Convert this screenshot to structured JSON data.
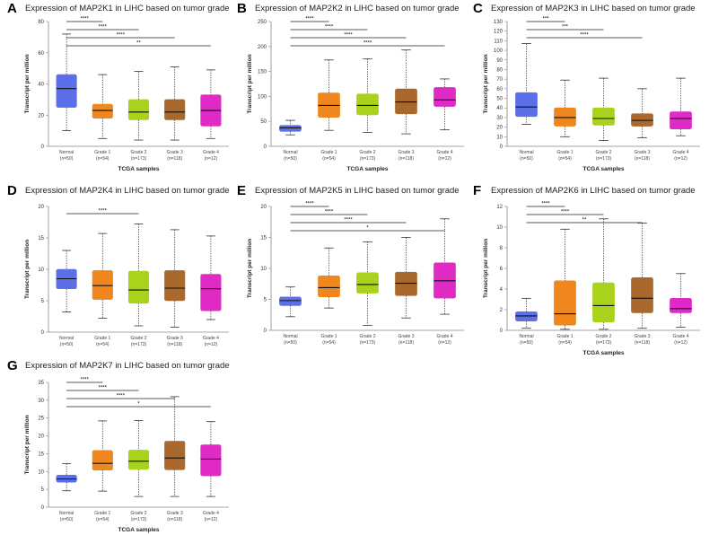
{
  "chart_data": [
    {
      "panel": "A",
      "type": "box",
      "title": "Expression of MAP2K1 in LIHC based on tumor grade",
      "xlabel": "TCGA samples",
      "ylabel": "Transcript per million",
      "ylim": [
        0,
        80
      ],
      "yticks": [
        0,
        20,
        40,
        60,
        80
      ],
      "categories": [
        {
          "name": "Normal",
          "n": "(n=50)"
        },
        {
          "name": "Grade 1",
          "n": "(n=54)"
        },
        {
          "name": "Grade 2",
          "n": "(n=173)"
        },
        {
          "name": "Grade 3",
          "n": "(n=118)"
        },
        {
          "name": "Grade 4",
          "n": "(n=12)"
        }
      ],
      "boxes": [
        {
          "min": 10,
          "q1": 25,
          "median": 37,
          "q3": 46,
          "max": 72
        },
        {
          "min": 5,
          "q1": 18,
          "median": 23,
          "q3": 27,
          "max": 46
        },
        {
          "min": 4,
          "q1": 17,
          "median": 22,
          "q3": 30,
          "max": 48
        },
        {
          "min": 4,
          "q1": 17,
          "median": 22,
          "q3": 30,
          "max": 51
        },
        {
          "min": 5,
          "q1": 13,
          "median": 23,
          "q3": 33,
          "max": 49
        }
      ],
      "significance": [
        {
          "from": 0,
          "to": 1,
          "label": "****"
        },
        {
          "from": 0,
          "to": 2,
          "label": "****"
        },
        {
          "from": 0,
          "to": 3,
          "label": "****"
        },
        {
          "from": 0,
          "to": 4,
          "label": "**"
        }
      ]
    },
    {
      "panel": "B",
      "type": "box",
      "title": "Expression of MAP2K2 in LIHC based on tumor grade",
      "xlabel": "TCGA samples",
      "ylabel": "Transcript per million",
      "ylim": [
        0,
        250
      ],
      "yticks": [
        0,
        50,
        100,
        150,
        200,
        250
      ],
      "categories": [
        {
          "name": "Normal",
          "n": "(n=50)"
        },
        {
          "name": "Grade 1",
          "n": "(n=54)"
        },
        {
          "name": "Grade 2",
          "n": "(n=173)"
        },
        {
          "name": "Grade 3",
          "n": "(n=118)"
        },
        {
          "name": "Grade 4",
          "n": "(n=12)"
        }
      ],
      "boxes": [
        {
          "min": 23,
          "q1": 30,
          "median": 37,
          "q3": 42,
          "max": 52
        },
        {
          "min": 32,
          "q1": 58,
          "median": 82,
          "q3": 107,
          "max": 173
        },
        {
          "min": 28,
          "q1": 63,
          "median": 82,
          "q3": 105,
          "max": 175
        },
        {
          "min": 25,
          "q1": 65,
          "median": 89,
          "q3": 115,
          "max": 193
        },
        {
          "min": 33,
          "q1": 80,
          "median": 93,
          "q3": 118,
          "max": 135
        }
      ],
      "significance": [
        {
          "from": 0,
          "to": 1,
          "label": "****"
        },
        {
          "from": 0,
          "to": 2,
          "label": "****"
        },
        {
          "from": 0,
          "to": 3,
          "label": "****"
        },
        {
          "from": 0,
          "to": 4,
          "label": "****"
        }
      ]
    },
    {
      "panel": "C",
      "type": "box",
      "title": "Expression of MAP2K3 in LIHC based on tumor grade",
      "xlabel": "TCGA samples",
      "ylabel": "Transcript per million",
      "ylim": [
        0,
        130
      ],
      "yticks": [
        0,
        10,
        20,
        30,
        40,
        50,
        60,
        70,
        80,
        90,
        100,
        110,
        120,
        130
      ],
      "categories": [
        {
          "name": "Normal",
          "n": "(n=50)"
        },
        {
          "name": "Grade 1",
          "n": "(n=54)"
        },
        {
          "name": "Grade 2",
          "n": "(n=173)"
        },
        {
          "name": "Grade 3",
          "n": "(n=118)"
        },
        {
          "name": "Grade 4",
          "n": "(n=12)"
        }
      ],
      "boxes": [
        {
          "min": 23,
          "q1": 31,
          "median": 41,
          "q3": 56,
          "max": 107
        },
        {
          "min": 10,
          "q1": 21,
          "median": 30,
          "q3": 40,
          "max": 69
        },
        {
          "min": 6,
          "q1": 22,
          "median": 29,
          "q3": 40,
          "max": 71
        },
        {
          "min": 9,
          "q1": 21,
          "median": 27,
          "q3": 34,
          "max": 60
        },
        {
          "min": 11,
          "q1": 18,
          "median": 29,
          "q3": 36,
          "max": 71
        }
      ],
      "significance": [
        {
          "from": 0,
          "to": 1,
          "label": "***"
        },
        {
          "from": 0,
          "to": 2,
          "label": "***"
        },
        {
          "from": 0,
          "to": 3,
          "label": "****"
        }
      ]
    },
    {
      "panel": "D",
      "type": "box",
      "title": "Expression of MAP2K4 in LIHC based on tumor grade",
      "xlabel": "",
      "ylabel": "Transcript per million",
      "ylim": [
        0,
        20
      ],
      "yticks": [
        0,
        5,
        10,
        15,
        20
      ],
      "categories": [
        {
          "name": "Normal",
          "n": "(n=50)"
        },
        {
          "name": "Grade 1",
          "n": "(n=54)"
        },
        {
          "name": "Grade 2",
          "n": "(n=173)"
        },
        {
          "name": "Grade 3",
          "n": "(n=118)"
        },
        {
          "name": "Grade 4",
          "n": "(n=12)"
        }
      ],
      "boxes": [
        {
          "min": 3.2,
          "q1": 6.9,
          "median": 8.5,
          "q3": 10.0,
          "max": 13.0
        },
        {
          "min": 2.2,
          "q1": 5.2,
          "median": 7.4,
          "q3": 9.8,
          "max": 15.7
        },
        {
          "min": 1.0,
          "q1": 4.6,
          "median": 6.7,
          "q3": 9.7,
          "max": 17.2
        },
        {
          "min": 0.8,
          "q1": 5.0,
          "median": 7.0,
          "q3": 9.8,
          "max": 16.3
        },
        {
          "min": 2.0,
          "q1": 3.4,
          "median": 6.9,
          "q3": 9.2,
          "max": 15.3
        }
      ],
      "significance": [
        {
          "from": 0,
          "to": 2,
          "label": "****"
        }
      ]
    },
    {
      "panel": "E",
      "type": "box",
      "title": "Expression of MAP2K5 in LIHC based on tumor grade",
      "xlabel": "",
      "ylabel": "Transcript per million",
      "ylim": [
        0,
        20
      ],
      "yticks": [
        0,
        5,
        10,
        15,
        20
      ],
      "categories": [
        {
          "name": "Normal",
          "n": "(n=50)"
        },
        {
          "name": "Grade 1",
          "n": "(n=54)"
        },
        {
          "name": "Grade 2",
          "n": "(n=173)"
        },
        {
          "name": "Grade 3",
          "n": "(n=118)"
        },
        {
          "name": "Grade 4",
          "n": "(n=12)"
        }
      ],
      "boxes": [
        {
          "min": 2.2,
          "q1": 4.0,
          "median": 4.8,
          "q3": 5.4,
          "max": 7.0
        },
        {
          "min": 3.6,
          "q1": 5.4,
          "median": 6.9,
          "q3": 8.8,
          "max": 13.3
        },
        {
          "min": 0.8,
          "q1": 6.0,
          "median": 7.4,
          "q3": 9.3,
          "max": 14.3
        },
        {
          "min": 2.0,
          "q1": 5.6,
          "median": 7.6,
          "q3": 9.4,
          "max": 15.0
        },
        {
          "min": 2.6,
          "q1": 5.2,
          "median": 8.0,
          "q3": 10.9,
          "max": 18.0
        }
      ],
      "significance": [
        {
          "from": 0,
          "to": 1,
          "label": "****"
        },
        {
          "from": 0,
          "to": 2,
          "label": "****"
        },
        {
          "from": 0,
          "to": 3,
          "label": "****"
        },
        {
          "from": 0,
          "to": 4,
          "label": "*"
        }
      ]
    },
    {
      "panel": "F",
      "type": "box",
      "title": "Expression of MAP2K6 in LIHC based on tumor grade",
      "xlabel": "TCGA samples",
      "ylabel": "Transcript per million",
      "ylim": [
        0,
        12
      ],
      "yticks": [
        0,
        2,
        4,
        6,
        8,
        10,
        12
      ],
      "categories": [
        {
          "name": "Normal",
          "n": "(n=50)"
        },
        {
          "name": "Grade 1",
          "n": "(n=54)"
        },
        {
          "name": "Grade 2",
          "n": "(n=173)"
        },
        {
          "name": "Grade 3",
          "n": "(n=118)"
        },
        {
          "name": "Grade 4",
          "n": "(n=12)"
        }
      ],
      "boxes": [
        {
          "min": 0.2,
          "q1": 0.9,
          "median": 1.4,
          "q3": 1.8,
          "max": 3.1
        },
        {
          "min": 0.1,
          "q1": 0.5,
          "median": 1.6,
          "q3": 4.8,
          "max": 9.8
        },
        {
          "min": 0.1,
          "q1": 0.8,
          "median": 2.4,
          "q3": 4.6,
          "max": 10.8
        },
        {
          "min": 0.2,
          "q1": 1.7,
          "median": 3.1,
          "q3": 5.1,
          "max": 10.4
        },
        {
          "min": 0.3,
          "q1": 1.7,
          "median": 2.1,
          "q3": 3.1,
          "max": 5.5
        }
      ],
      "significance": [
        {
          "from": 0,
          "to": 1,
          "label": "****"
        },
        {
          "from": 0,
          "to": 2,
          "label": "****"
        },
        {
          "from": 0,
          "to": 3,
          "label": "**"
        }
      ]
    },
    {
      "panel": "G",
      "type": "box",
      "title": "Expression of MAP2K7 in LIHC based on tumor grade",
      "xlabel": "TCGA samples",
      "ylabel": "Transcript per million",
      "ylim": [
        0,
        35
      ],
      "yticks": [
        0,
        5,
        10,
        15,
        20,
        25,
        30,
        35
      ],
      "categories": [
        {
          "name": "Normal",
          "n": "(n=50)"
        },
        {
          "name": "Grade 1",
          "n": "(n=54)"
        },
        {
          "name": "Grade 2",
          "n": "(n=173)"
        },
        {
          "name": "Grade 3",
          "n": "(n=118)"
        },
        {
          "name": "Grade 4",
          "n": "(n=12)"
        }
      ],
      "boxes": [
        {
          "min": 4.6,
          "q1": 7.0,
          "median": 7.9,
          "q3": 9.0,
          "max": 12.2
        },
        {
          "min": 4.5,
          "q1": 10.4,
          "median": 12.3,
          "q3": 15.9,
          "max": 24.2
        },
        {
          "min": 3.0,
          "q1": 10.6,
          "median": 12.9,
          "q3": 16.0,
          "max": 24.3
        },
        {
          "min": 3.0,
          "q1": 10.5,
          "median": 13.8,
          "q3": 18.5,
          "max": 31.0
        },
        {
          "min": 3.0,
          "q1": 8.8,
          "median": 13.5,
          "q3": 17.5,
          "max": 24.0
        }
      ],
      "significance": [
        {
          "from": 0,
          "to": 1,
          "label": "****"
        },
        {
          "from": 0,
          "to": 2,
          "label": "****"
        },
        {
          "from": 0,
          "to": 3,
          "label": "****"
        },
        {
          "from": 0,
          "to": 4,
          "label": "*"
        }
      ]
    }
  ],
  "colors": {
    "Normal": "#5b6fe8",
    "Grade 1": "#f0861e",
    "Grade 2": "#a8d21c",
    "Grade 3": "#a9692c",
    "Grade 4": "#e02ac6",
    "axis": "#888888",
    "whisker": "#333333"
  }
}
